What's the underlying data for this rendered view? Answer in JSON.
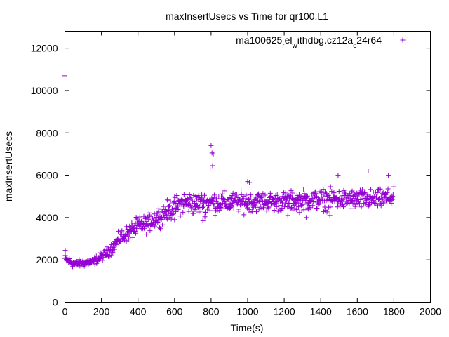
{
  "chart_data": {
    "type": "scatter",
    "title": "maxInsertUsecs vs Time for qr100.L1",
    "xlabel": "Time(s)",
    "ylabel": "maxInsertUsecs",
    "xlim": [
      0,
      2000
    ],
    "ylim": [
      0,
      12800
    ],
    "xticks": [
      0,
      200,
      400,
      600,
      800,
      1000,
      1200,
      1400,
      1600,
      1800,
      2000
    ],
    "xtick_labels": [
      "0",
      "200",
      "400",
      "600",
      "800",
      "1000",
      "1200",
      "1400",
      "1600",
      "1800",
      "2000"
    ],
    "yticks": [
      0,
      2000,
      4000,
      6000,
      8000,
      10000,
      12000
    ],
    "ytick_labels": [
      "0",
      "2000",
      "4000",
      "6000",
      "8000",
      "10000",
      "12000"
    ],
    "grid": false,
    "legend_position": "top-right",
    "color": "#9400d3",
    "series": [
      {
        "name": "ma100625",
        "legend_parts": {
          "a": "ma100625",
          "s1": "r",
          "b": "el",
          "s2": "w",
          "c": "ithdbg.cz12a",
          "s3": "c",
          "d": "24r64"
        },
        "outliers": [
          {
            "x": 0,
            "y": 10700
          },
          {
            "x": 2,
            "y": 2450
          },
          {
            "x": 800,
            "y": 7400
          },
          {
            "x": 805,
            "y": 7050
          },
          {
            "x": 812,
            "y": 7000
          },
          {
            "x": 795,
            "y": 6300
          },
          {
            "x": 808,
            "y": 6450
          },
          {
            "x": 1660,
            "y": 6200
          },
          {
            "x": 1770,
            "y": 6000
          },
          {
            "x": 1495,
            "y": 6000
          },
          {
            "x": 1000,
            "y": 5700
          },
          {
            "x": 1010,
            "y": 5650
          },
          {
            "x": 600,
            "y": 3900
          },
          {
            "x": 755,
            "y": 3850
          },
          {
            "x": 1220,
            "y": 4100
          },
          {
            "x": 1320,
            "y": 4000
          },
          {
            "x": 1450,
            "y": 4100
          }
        ],
        "trend": [
          {
            "t": 0,
            "mean": 2050,
            "spread": 300
          },
          {
            "t": 50,
            "mean": 1800,
            "spread": 250
          },
          {
            "t": 100,
            "mean": 1850,
            "spread": 250
          },
          {
            "t": 150,
            "mean": 1900,
            "spread": 250
          },
          {
            "t": 200,
            "mean": 2150,
            "spread": 300
          },
          {
            "t": 250,
            "mean": 2500,
            "spread": 400
          },
          {
            "t": 300,
            "mean": 3000,
            "spread": 500
          },
          {
            "t": 350,
            "mean": 3300,
            "spread": 550
          },
          {
            "t": 400,
            "mean": 3600,
            "spread": 600
          },
          {
            "t": 450,
            "mean": 3700,
            "spread": 600
          },
          {
            "t": 500,
            "mean": 4000,
            "spread": 650
          },
          {
            "t": 550,
            "mean": 4250,
            "spread": 700
          },
          {
            "t": 600,
            "mean": 4500,
            "spread": 700
          },
          {
            "t": 650,
            "mean": 4700,
            "spread": 750
          },
          {
            "t": 700,
            "mean": 4650,
            "spread": 750
          },
          {
            "t": 800,
            "mean": 4700,
            "spread": 750
          },
          {
            "t": 900,
            "mean": 4700,
            "spread": 700
          },
          {
            "t": 1000,
            "mean": 4750,
            "spread": 700
          },
          {
            "t": 1100,
            "mean": 4750,
            "spread": 650
          },
          {
            "t": 1200,
            "mean": 4750,
            "spread": 650
          },
          {
            "t": 1300,
            "mean": 4800,
            "spread": 700
          },
          {
            "t": 1400,
            "mean": 4850,
            "spread": 700
          },
          {
            "t": 1500,
            "mean": 4850,
            "spread": 700
          },
          {
            "t": 1600,
            "mean": 4850,
            "spread": 700
          },
          {
            "t": 1700,
            "mean": 4850,
            "spread": 650
          },
          {
            "t": 1800,
            "mean": 4950,
            "spread": 600
          }
        ],
        "x_range": [
          0,
          1800
        ],
        "sample_step_seconds": 2
      }
    ]
  }
}
